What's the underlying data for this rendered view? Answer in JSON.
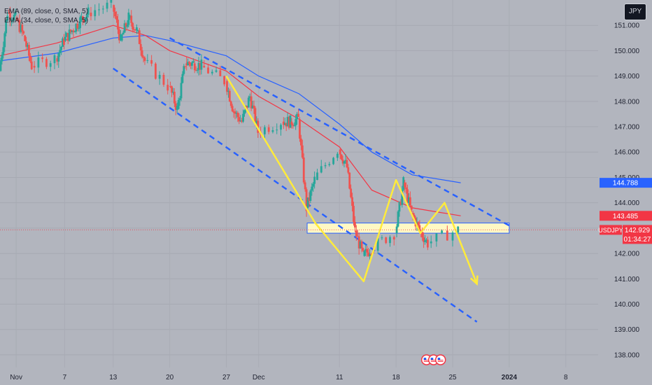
{
  "legend": {
    "ema_slow": "EMA (89, close, 0, SMA, 5)",
    "ema_fast": "EMA (34, close, 0, SMA, 5)"
  },
  "currency_button": "JPY",
  "colors": {
    "background": "#b2b5be",
    "up_candle": "#26a69a",
    "down_candle": "#ef5350",
    "ema_slow": "#2962ff",
    "ema_fast": "#f23645",
    "annotation": "#ffeb3b",
    "channel": "#2962ff",
    "price_line": "#f23645",
    "badge_blue": "#2962ff",
    "badge_red": "#f23645"
  },
  "price_badges": {
    "ema_slow_value": "144.788",
    "ema_fast_value": "143.485",
    "symbol": "USDJPY",
    "last_price": "142.929",
    "countdown": "01:34:27"
  },
  "events_icons": [
    "us-flag-event-icon",
    "us-flag-event-icon",
    "us-flag-event-icon"
  ],
  "chart_data": {
    "type": "candlestick",
    "symbol": "USDJPY",
    "y_axis_ticks": [
      "151.000",
      "150.000",
      "149.000",
      "148.000",
      "147.000",
      "146.000",
      "145.000",
      "144.000",
      "143.000",
      "142.000",
      "141.000",
      "140.000",
      "139.000",
      "138.000"
    ],
    "ylim": [
      137.5,
      152.0
    ],
    "x_axis_ticks": [
      "Nov",
      "7",
      "13",
      "20",
      "27",
      "Dec",
      "11",
      "18",
      "25",
      "2024",
      "8"
    ],
    "x_tick_dates": [
      "2023-11-01",
      "2023-11-07",
      "2023-11-13",
      "2023-11-20",
      "2023-11-27",
      "2023-12-01",
      "2023-12-11",
      "2023-12-18",
      "2023-12-25",
      "2024-01-01",
      "2024-01-08"
    ],
    "xlim": [
      "2023-10-30",
      "2024-01-12"
    ],
    "last_price": 142.929,
    "price_path": [
      [
        "2023-10-30",
        149.2
      ],
      [
        "2023-10-31",
        151.5
      ],
      [
        "2023-11-01",
        151.3
      ],
      [
        "2023-11-02",
        150.6
      ],
      [
        "2023-11-03",
        149.4
      ],
      [
        "2023-11-06",
        149.7
      ],
      [
        "2023-11-07",
        150.4
      ],
      [
        "2023-11-08",
        150.8
      ],
      [
        "2023-11-09",
        151.2
      ],
      [
        "2023-11-10",
        151.5
      ],
      [
        "2023-11-13",
        151.8
      ],
      [
        "2023-11-14",
        150.4
      ],
      [
        "2023-11-15",
        151.3
      ],
      [
        "2023-11-16",
        150.8
      ],
      [
        "2023-11-17",
        149.6
      ],
      [
        "2023-11-20",
        148.6
      ],
      [
        "2023-11-21",
        147.7
      ],
      [
        "2023-11-22",
        149.5
      ],
      [
        "2023-11-23",
        149.5
      ],
      [
        "2023-11-24",
        149.4
      ],
      [
        "2023-11-27",
        148.8
      ],
      [
        "2023-11-28",
        147.6
      ],
      [
        "2023-11-29",
        147.2
      ],
      [
        "2023-11-30",
        148.2
      ],
      [
        "2023-12-01",
        146.8
      ],
      [
        "2023-12-04",
        147.2
      ],
      [
        "2023-12-05",
        147.2
      ],
      [
        "2023-12-06",
        147.3
      ],
      [
        "2023-12-07",
        143.8
      ],
      [
        "2023-12-08",
        144.9
      ],
      [
        "2023-12-11",
        146.1
      ],
      [
        "2023-12-12",
        145.4
      ],
      [
        "2023-12-13",
        142.9
      ],
      [
        "2023-12-14",
        141.9
      ],
      [
        "2023-12-15",
        142.2
      ],
      [
        "2023-12-18",
        142.8
      ],
      [
        "2023-12-19",
        144.8
      ],
      [
        "2023-12-20",
        143.6
      ],
      [
        "2023-12-21",
        142.9
      ],
      [
        "2023-12-22",
        142.4
      ],
      [
        "2023-12-26",
        142.929
      ]
    ],
    "ema_slow": [
      [
        "2023-10-30",
        149.6
      ],
      [
        "2023-11-06",
        149.9
      ],
      [
        "2023-11-13",
        150.5
      ],
      [
        "2023-11-17",
        150.6
      ],
      [
        "2023-11-20",
        150.4
      ],
      [
        "2023-11-27",
        149.8
      ],
      [
        "2023-12-01",
        149.0
      ],
      [
        "2023-12-06",
        148.3
      ],
      [
        "2023-12-11",
        147.1
      ],
      [
        "2023-12-15",
        146.0
      ],
      [
        "2023-12-20",
        145.1
      ],
      [
        "2023-12-26",
        144.788
      ]
    ],
    "ema_fast": [
      [
        "2023-10-30",
        149.8
      ],
      [
        "2023-11-06",
        150.3
      ],
      [
        "2023-11-13",
        151.0
      ],
      [
        "2023-11-17",
        150.6
      ],
      [
        "2023-11-20",
        150.0
      ],
      [
        "2023-11-27",
        149.2
      ],
      [
        "2023-12-01",
        148.2
      ],
      [
        "2023-12-06",
        147.3
      ],
      [
        "2023-12-11",
        146.2
      ],
      [
        "2023-12-15",
        144.5
      ],
      [
        "2023-12-20",
        143.8
      ],
      [
        "2023-12-26",
        143.485
      ]
    ],
    "support_zone": {
      "from": "2023-12-07",
      "to": "2024-01-01",
      "top": 143.2,
      "bottom": 142.8
    },
    "channel_upper": [
      [
        "2023-11-20",
        150.5
      ],
      [
        "2024-01-01",
        143.1
      ]
    ],
    "channel_lower": [
      [
        "2023-11-13",
        149.3
      ],
      [
        "2023-12-28",
        139.3
      ]
    ],
    "projection_path": [
      [
        "2023-11-27",
        149.0
      ],
      [
        "2023-12-08",
        143.2
      ],
      [
        "2023-12-14",
        140.9
      ],
      [
        "2023-12-18",
        144.9
      ],
      [
        "2023-12-21",
        142.8
      ],
      [
        "2023-12-24",
        144.0
      ],
      [
        "2023-12-28",
        140.8
      ]
    ]
  }
}
